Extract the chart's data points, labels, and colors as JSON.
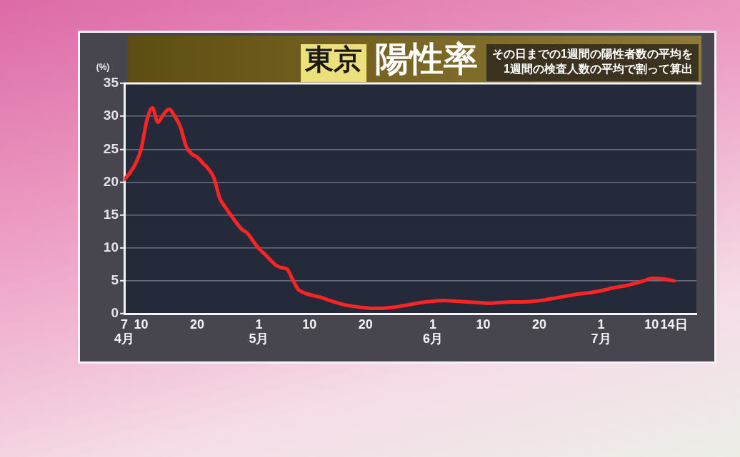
{
  "chart_data": {
    "type": "line",
    "title": "東京 陽性率",
    "subtitle": "その日までの1週間の陽性者数の平均を\n1週間の検査人数の平均で割って算出",
    "ylabel": "(%)",
    "x": [
      "--04-07",
      "--04-08",
      "--04-09",
      "--04-10",
      "--04-11",
      "--04-12",
      "--04-13",
      "--04-14",
      "--04-15",
      "--04-16",
      "--04-17",
      "--04-18",
      "--04-19",
      "--04-20",
      "--04-21",
      "--04-22",
      "--04-23",
      "--04-24",
      "--04-25",
      "--04-26",
      "--04-27",
      "--04-28",
      "--04-29",
      "--04-30",
      "--05-01",
      "--05-02",
      "--05-03",
      "--05-04",
      "--05-05",
      "--05-06",
      "--05-07",
      "--05-08",
      "--05-09",
      "--05-10",
      "--05-12",
      "--05-14",
      "--05-16",
      "--05-18",
      "--05-20",
      "--05-22",
      "--05-24",
      "--05-26",
      "--05-28",
      "--05-30",
      "--06-01",
      "--06-03",
      "--06-05",
      "--06-07",
      "--06-09",
      "--06-11",
      "--06-13",
      "--06-15",
      "--06-17",
      "--06-19",
      "--06-21",
      "--06-23",
      "--06-25",
      "--06-27",
      "--06-29",
      "--07-01",
      "--07-03",
      "--07-05",
      "--07-07",
      "--07-09",
      "--07-10",
      "--07-12",
      "--07-14"
    ],
    "values": [
      20.4,
      21.4,
      22.8,
      25.0,
      29.3,
      31.3,
      29.1,
      30.3,
      31.1,
      30.0,
      28.4,
      25.5,
      24.3,
      23.8,
      22.9,
      22.0,
      20.6,
      17.6,
      16.2,
      15.0,
      13.8,
      12.8,
      12.2,
      11.0,
      9.9,
      9.1,
      8.2,
      7.4,
      7.0,
      6.8,
      5.2,
      3.7,
      3.2,
      2.9,
      2.5,
      1.9,
      1.4,
      1.1,
      0.9,
      0.8,
      0.9,
      1.1,
      1.4,
      1.7,
      1.9,
      2.0,
      1.9,
      1.8,
      1.7,
      1.6,
      1.7,
      1.8,
      1.8,
      1.9,
      2.1,
      2.4,
      2.7,
      3.0,
      3.2,
      3.5,
      3.9,
      4.2,
      4.6,
      5.1,
      5.4,
      5.3,
      5.0
    ],
    "color": "#ff2424",
    "xlim": [
      "--04-07",
      "--07-18"
    ],
    "xticks": [
      {
        "value": "--04-07",
        "label": "7\n4月"
      },
      {
        "value": "--04-10",
        "label": "10"
      },
      {
        "value": "--04-20",
        "label": "20"
      },
      {
        "value": "--05-01",
        "label": "1\n5月"
      },
      {
        "value": "--05-10",
        "label": "10"
      },
      {
        "value": "--05-20",
        "label": "20"
      },
      {
        "value": "--06-01",
        "label": "1\n6月"
      },
      {
        "value": "--06-10",
        "label": "10"
      },
      {
        "value": "--06-20",
        "label": "20"
      },
      {
        "value": "--07-01",
        "label": "1\n7月"
      },
      {
        "value": "--07-10",
        "label": "10"
      },
      {
        "value": "--07-14",
        "label": "14日"
      }
    ],
    "ylim": [
      0,
      35
    ],
    "yticks": [
      0,
      5,
      10,
      15,
      20,
      25,
      30,
      35
    ],
    "grid": "y",
    "legend": false,
    "marker": "none"
  }
}
